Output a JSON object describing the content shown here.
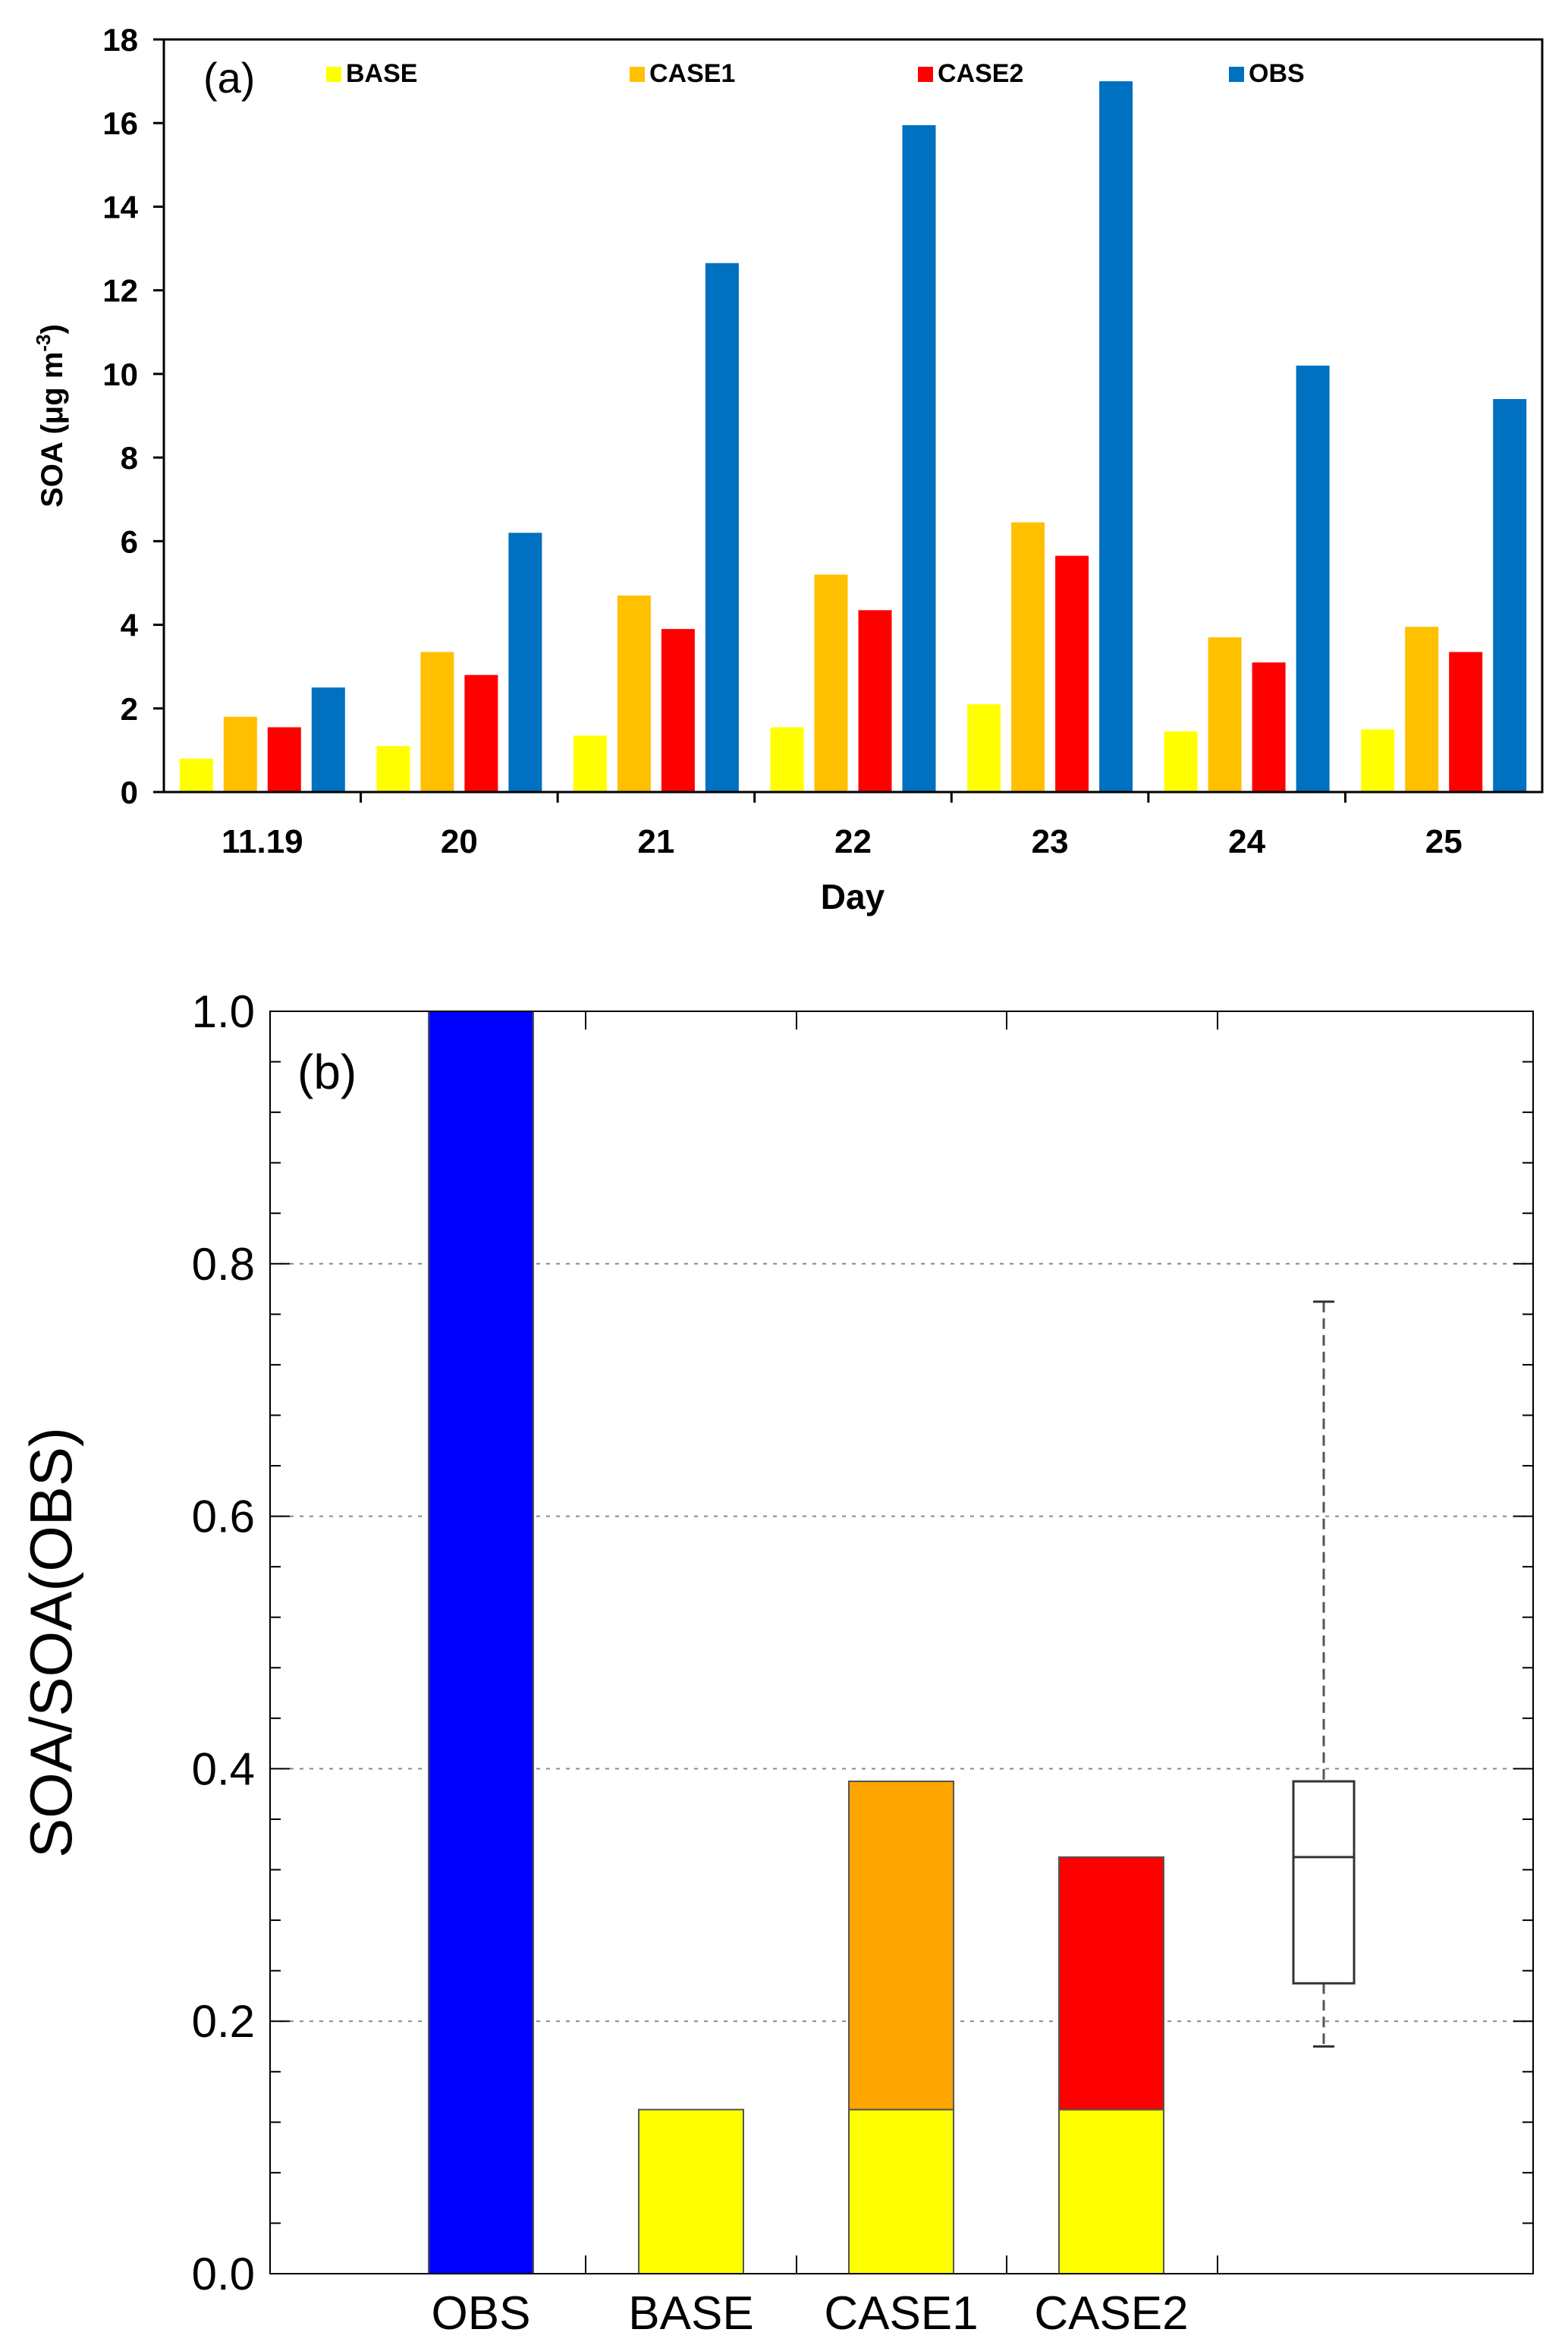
{
  "chart_data": [
    {
      "type": "bar",
      "panel_label": "(a)",
      "ylabel_main": "SOA (μg m",
      "ylabel_sup": "-3",
      "ylabel_close": ")",
      "xlabel": "Day",
      "categories": [
        "11.19",
        "20",
        "21",
        "22",
        "23",
        "24",
        "25"
      ],
      "ylim": [
        0,
        18
      ],
      "yticks": [
        "0",
        "2",
        "4",
        "6",
        "8",
        "10",
        "12",
        "14",
        "16",
        "18"
      ],
      "legend_position": "top",
      "series": [
        {
          "name": "BASE",
          "color": "#ffff00",
          "values": [
            0.8,
            1.1,
            1.35,
            1.55,
            2.1,
            1.45,
            1.5
          ]
        },
        {
          "name": "CASE1",
          "color": "#ffc000",
          "values": [
            1.8,
            3.35,
            4.7,
            5.2,
            6.45,
            3.7,
            3.95
          ]
        },
        {
          "name": "CASE2",
          "color": "#ff0000",
          "values": [
            1.55,
            2.8,
            3.9,
            4.35,
            5.65,
            3.1,
            3.35
          ]
        },
        {
          "name": "OBS",
          "color": "#0070c0",
          "values": [
            2.5,
            6.2,
            12.65,
            15.95,
            17.0,
            10.2,
            9.4
          ]
        }
      ]
    },
    {
      "type": "bar",
      "panel_label": "(b)",
      "ylabel": "SOA/SOA(OBS)",
      "xlabel": "",
      "categories": [
        "OBS",
        "BASE",
        "CASE1",
        "CASE2"
      ],
      "ylim": [
        0,
        1.0
      ],
      "yticks": [
        "0.0",
        "0.2",
        "0.4",
        "0.6",
        "0.8",
        "1.0"
      ],
      "grid": "horizontal dotted",
      "stacked_bars": [
        {
          "category": "OBS",
          "segments": [
            {
              "value": 1.0,
              "color": "#0000ff"
            }
          ]
        },
        {
          "category": "BASE",
          "segments": [
            {
              "value": 0.13,
              "color": "#ffff00"
            }
          ]
        },
        {
          "category": "CASE1",
          "segments": [
            {
              "value": 0.13,
              "color": "#ffff00"
            },
            {
              "value": 0.26,
              "color": "#ffa500"
            }
          ]
        },
        {
          "category": "CASE2",
          "segments": [
            {
              "value": 0.13,
              "color": "#ffff00"
            },
            {
              "value": 0.2,
              "color": "#ff0000"
            }
          ]
        }
      ],
      "boxplot": {
        "whisker_low": 0.18,
        "q1": 0.23,
        "median": 0.33,
        "q3": 0.39,
        "whisker_high": 0.77
      }
    }
  ]
}
